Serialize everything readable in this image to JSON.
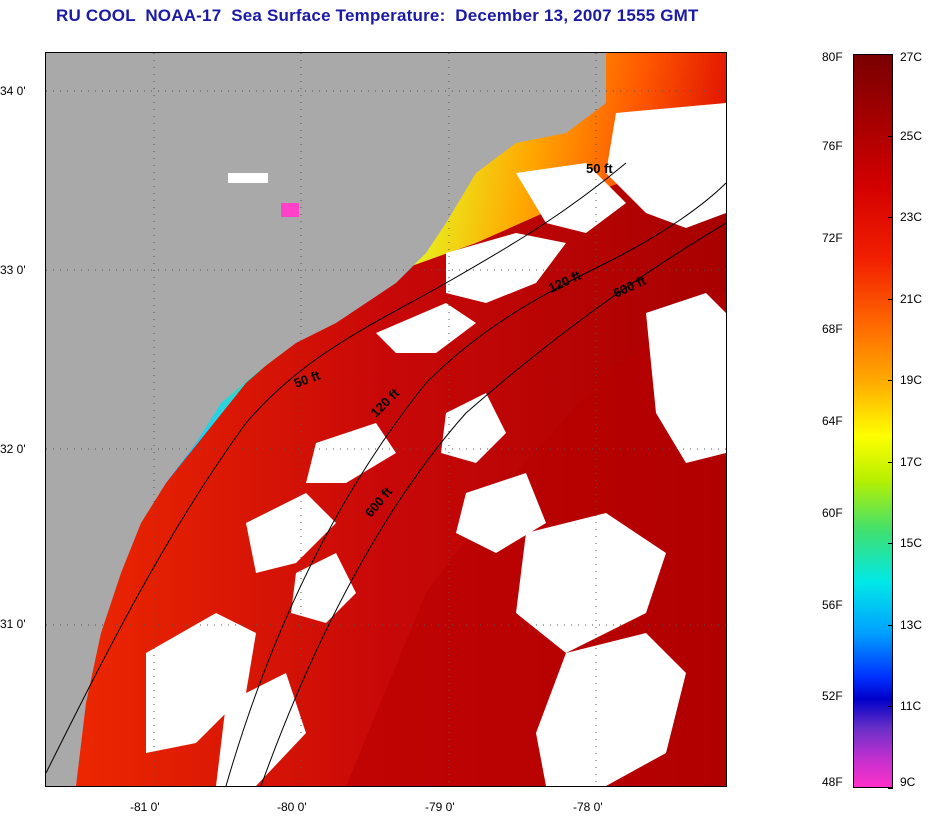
{
  "title": "RU COOL  NOAA-17  Sea Surface Temperature:  December 13, 2007 1555 GMT",
  "map": {
    "lat_labels": [
      "34 0'",
      "33 0'",
      "32 0'",
      "31 0'"
    ],
    "lon_labels": [
      "-81 0'",
      "-80 0'",
      "-79 0'",
      "-78 0'"
    ],
    "contour_labels": [
      "50 ft",
      "50 ft",
      "120 ft",
      "120 ft",
      "600 ft",
      "600 ft"
    ]
  },
  "colorbar": {
    "fahrenheit": [
      "80F",
      "76F",
      "72F",
      "68F",
      "64F",
      "60F",
      "56F",
      "52F",
      "48F"
    ],
    "celsius": [
      "27C",
      "25C",
      "23C",
      "21C",
      "19C",
      "17C",
      "15C",
      "13C",
      "11C",
      "9C"
    ]
  },
  "colors": {
    "land": "#a9a9a9",
    "cloud": "#ffffff",
    "title": "#1a1aa6"
  }
}
